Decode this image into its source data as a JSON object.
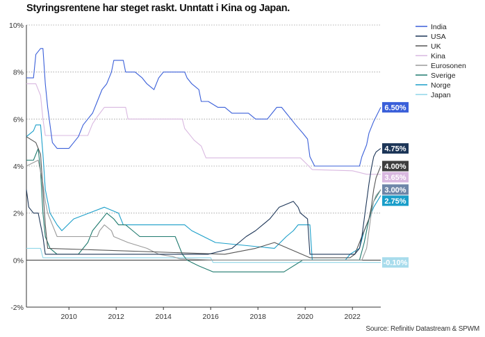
{
  "title": "Styringsrentene har steget raskt. Unntatt i Kina og Japan.",
  "source": "Source: Refinitiv Datastream & SPWM",
  "chart_data": {
    "type": "line",
    "title": "Styringsrentene har steget raskt. Unntatt i Kina og Japan.",
    "xlabel": "",
    "ylabel": "",
    "xlim": [
      2008.2,
      2023.2
    ],
    "ylim": [
      -2,
      10
    ],
    "y_ticks": [
      -2,
      0,
      2,
      4,
      6,
      8,
      10
    ],
    "y_tick_labels": [
      "-2%",
      "0%",
      "2%",
      "4%",
      "6%",
      "8%",
      "10%"
    ],
    "x_ticks": [
      2010,
      2012,
      2014,
      2016,
      2018,
      2020,
      2022
    ],
    "x_tick_labels": [
      "2010",
      "2012",
      "2014",
      "2016",
      "2018",
      "2020",
      "2022"
    ],
    "grid": "horizontal dotted",
    "legend_position": "right",
    "series": [
      {
        "name": "India",
        "color": "#3a5fd9",
        "x": [
          2008.2,
          2008.5,
          2008.6,
          2008.8,
          2008.9,
          2009.0,
          2009.1,
          2009.3,
          2009.5,
          2009.8,
          2010.0,
          2010.2,
          2010.4,
          2010.6,
          2010.8,
          2011.0,
          2011.2,
          2011.4,
          2011.6,
          2011.8,
          2011.9,
          2012.3,
          2012.4,
          2012.8,
          2013.1,
          2013.3,
          2013.6,
          2013.8,
          2014.0,
          2014.6,
          2014.9,
          2015.0,
          2015.2,
          2015.5,
          2015.6,
          2015.9,
          2016.3,
          2016.6,
          2016.9,
          2017.6,
          2017.9,
          2018.4,
          2018.6,
          2018.8,
          2019.0,
          2019.2,
          2019.4,
          2019.6,
          2019.9,
          2020.1,
          2020.2,
          2020.4,
          2021.0,
          2021.5,
          2022.3,
          2022.4,
          2022.6,
          2022.7,
          2022.9,
          2023.2
        ],
        "y": [
          7.75,
          7.75,
          8.75,
          9.0,
          9.0,
          7.5,
          6.5,
          5.0,
          4.75,
          4.75,
          4.75,
          5.0,
          5.25,
          5.75,
          6.0,
          6.25,
          6.75,
          7.25,
          7.5,
          8.0,
          8.5,
          8.5,
          8.0,
          8.0,
          7.75,
          7.5,
          7.25,
          7.75,
          8.0,
          8.0,
          8.0,
          7.75,
          7.5,
          7.25,
          6.75,
          6.75,
          6.5,
          6.5,
          6.25,
          6.25,
          6.0,
          6.0,
          6.25,
          6.5,
          6.5,
          6.25,
          6.0,
          5.75,
          5.4,
          5.15,
          4.4,
          4.0,
          4.0,
          4.0,
          4.0,
          4.4,
          4.9,
          5.4,
          5.9,
          6.5
        ]
      },
      {
        "name": "USA",
        "color": "#1c3557",
        "x": [
          2008.2,
          2008.3,
          2008.5,
          2008.7,
          2008.9,
          2009.0,
          2015.9,
          2016.9,
          2017.2,
          2017.5,
          2017.9,
          2018.2,
          2018.5,
          2018.7,
          2018.9,
          2019.5,
          2019.7,
          2019.8,
          2020.1,
          2020.2,
          2022.1,
          2022.3,
          2022.4,
          2022.5,
          2022.6,
          2022.7,
          2022.8,
          2022.9,
          2023.0,
          2023.2
        ],
        "y": [
          3.0,
          2.25,
          2.0,
          2.0,
          1.0,
          0.25,
          0.25,
          0.5,
          0.75,
          1.0,
          1.25,
          1.5,
          1.75,
          2.0,
          2.25,
          2.5,
          2.25,
          2.0,
          1.75,
          0.25,
          0.25,
          0.5,
          1.0,
          1.75,
          2.5,
          3.25,
          3.9,
          4.4,
          4.6,
          4.75
        ]
      },
      {
        "name": "UK",
        "color": "#555555",
        "x": [
          2008.2,
          2008.6,
          2008.8,
          2008.9,
          2009.0,
          2009.1,
          2016.6,
          2017.9,
          2018.7,
          2020.2,
          2021.9,
          2022.1,
          2022.3,
          2022.5,
          2022.7,
          2022.8,
          2022.9,
          2023.0,
          2023.2
        ],
        "y": [
          5.25,
          5.0,
          4.5,
          3.0,
          1.5,
          0.5,
          0.25,
          0.5,
          0.75,
          0.1,
          0.1,
          0.25,
          0.75,
          1.25,
          1.75,
          2.25,
          3.0,
          3.5,
          4.0
        ]
      },
      {
        "name": "Kina",
        "color": "#d9b8e0",
        "x": [
          2008.2,
          2008.6,
          2008.8,
          2008.9,
          2009.0,
          2010.8,
          2011.0,
          2011.2,
          2011.5,
          2012.4,
          2012.5,
          2014.8,
          2014.9,
          2015.1,
          2015.3,
          2015.6,
          2015.8,
          2019.8,
          2020.0,
          2020.3,
          2022.0,
          2022.6,
          2023.2
        ],
        "y": [
          7.5,
          7.5,
          7.0,
          6.0,
          5.3,
          5.3,
          5.8,
          6.1,
          6.5,
          6.5,
          6.0,
          6.0,
          5.6,
          5.35,
          5.1,
          4.85,
          4.35,
          4.35,
          4.15,
          3.85,
          3.8,
          3.65,
          3.65
        ]
      },
      {
        "name": "Eurosonen",
        "color": "#9a9a9a",
        "x": [
          2008.2,
          2008.7,
          2008.8,
          2008.9,
          2009.0,
          2009.1,
          2009.3,
          2009.5,
          2011.2,
          2011.3,
          2011.5,
          2011.8,
          2011.9,
          2012.5,
          2013.3,
          2013.8,
          2014.4,
          2014.7,
          2016.2,
          2022.4,
          2022.6,
          2022.7,
          2022.8,
          2022.9,
          2023.0,
          2023.2
        ],
        "y": [
          4.0,
          4.25,
          3.75,
          3.25,
          2.5,
          2.0,
          1.5,
          1.0,
          1.0,
          1.25,
          1.5,
          1.25,
          1.0,
          0.75,
          0.5,
          0.25,
          0.15,
          0.05,
          0.0,
          0.0,
          0.5,
          1.25,
          2.0,
          2.5,
          2.75,
          3.0
        ]
      },
      {
        "name": "Sverige",
        "color": "#1f7a6e",
        "x": [
          2008.2,
          2008.5,
          2008.7,
          2008.8,
          2008.9,
          2009.0,
          2009.2,
          2009.5,
          2010.4,
          2010.6,
          2010.8,
          2011.0,
          2011.2,
          2011.6,
          2011.9,
          2012.1,
          2012.4,
          2012.7,
          2013.0,
          2014.5,
          2014.8,
          2015.0,
          2015.2,
          2015.5,
          2016.1,
          2019.1,
          2019.9,
          2022.3,
          2022.5,
          2022.7,
          2022.9,
          2023.2
        ],
        "y": [
          4.25,
          4.25,
          4.75,
          3.75,
          2.0,
          1.0,
          0.5,
          0.25,
          0.25,
          0.5,
          0.75,
          1.25,
          1.5,
          2.0,
          1.75,
          1.5,
          1.5,
          1.25,
          1.0,
          1.0,
          0.25,
          0.0,
          -0.1,
          -0.25,
          -0.5,
          -0.5,
          0.0,
          0.0,
          0.75,
          1.75,
          2.5,
          3.0
        ]
      },
      {
        "name": "Norge",
        "color": "#1a9ec9",
        "x": [
          2008.2,
          2008.5,
          2008.6,
          2008.8,
          2008.9,
          2009.0,
          2009.2,
          2009.5,
          2009.7,
          2010.2,
          2011.5,
          2012.1,
          2012.3,
          2014.9,
          2015.2,
          2015.7,
          2016.2,
          2018.7,
          2019.2,
          2019.5,
          2019.7,
          2020.2,
          2020.3,
          2021.7,
          2021.9,
          2022.3,
          2022.5,
          2022.7,
          2022.9,
          2023.2
        ],
        "y": [
          5.25,
          5.5,
          5.75,
          5.75,
          4.5,
          3.0,
          2.0,
          1.5,
          1.25,
          1.75,
          2.25,
          2.0,
          1.5,
          1.5,
          1.25,
          1.0,
          0.75,
          0.5,
          1.0,
          1.25,
          1.5,
          1.5,
          0.0,
          0.0,
          0.25,
          0.5,
          1.25,
          1.75,
          2.25,
          2.75
        ]
      },
      {
        "name": "Japan",
        "color": "#8fd6e8",
        "x": [
          2008.2,
          2008.8,
          2008.9,
          2016.0,
          2016.1,
          2023.2
        ],
        "y": [
          0.5,
          0.5,
          0.1,
          0.1,
          -0.1,
          -0.1
        ]
      }
    ],
    "end_labels": [
      {
        "series": "India",
        "text": "6.50%",
        "color": "#3a5fd9",
        "value": 6.5
      },
      {
        "series": "USA",
        "text": "4.75%",
        "color": "#1c3557",
        "value": 4.75
      },
      {
        "series": "UK",
        "text": "4.00%",
        "color": "#3d3d3d",
        "value": 4.0
      },
      {
        "series": "Kina",
        "text": "3.65%",
        "color": "#d9b8e0",
        "value": 3.65
      },
      {
        "series": "Eurosonen",
        "text": "3.00%",
        "color": "#6e86a8",
        "value": 3.0
      },
      {
        "series": "Norge",
        "text": "2.75%",
        "color": "#1a9ec9",
        "value": 2.75
      },
      {
        "series": "Japan",
        "text": "-0.10%",
        "color": "#a8dcec",
        "value": -0.1
      }
    ]
  }
}
